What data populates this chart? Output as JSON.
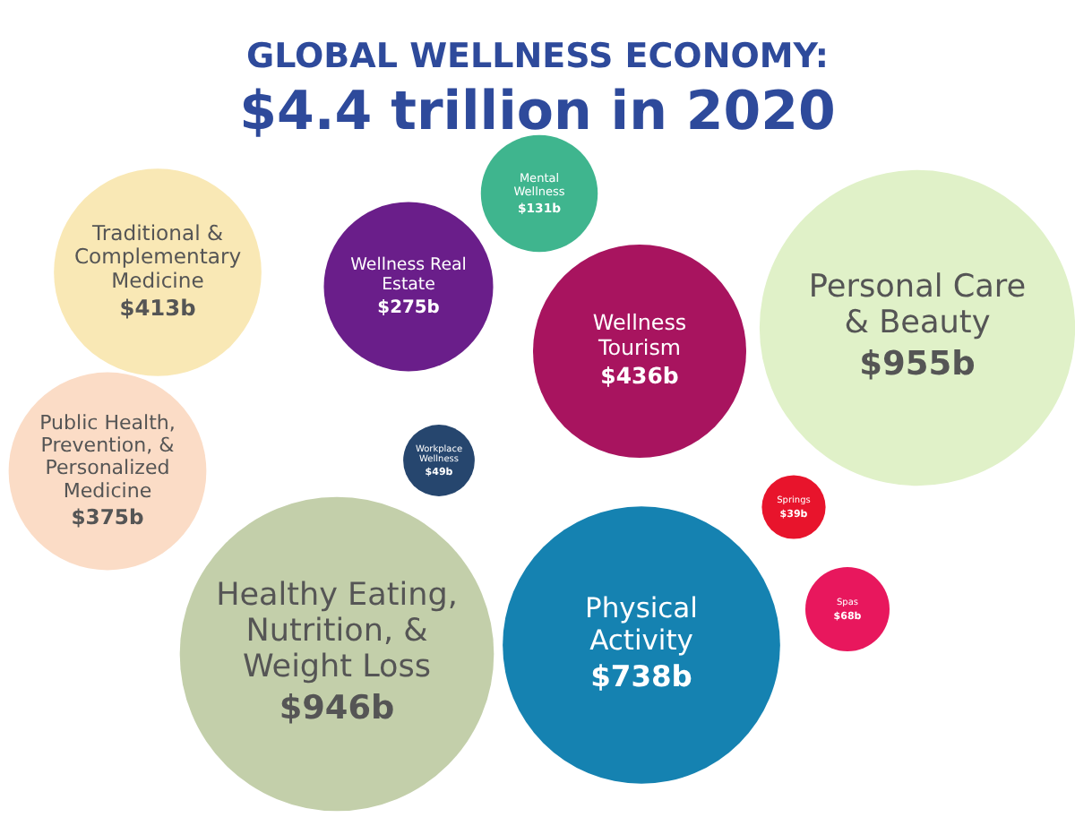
{
  "chart_data": {
    "type": "other",
    "title": "GLOBAL WELLNESS ECONOMY:",
    "subtitle": "$4.4 trillion in 2020",
    "categories": [
      "Mental Wellness",
      "Traditional & Complementary Medicine",
      "Wellness Real Estate",
      "Wellness Tourism",
      "Personal Care & Beauty",
      "Public Health, Prevention, & Personalized Medicine",
      "Workplace Wellness",
      "Springs",
      "Spas",
      "Healthy Eating, Nutrition, & Weight Loss",
      "Physical Activity"
    ],
    "values": [
      131,
      413,
      275,
      436,
      955,
      375,
      49,
      39,
      68,
      946,
      738
    ],
    "value_labels": [
      "$131b",
      "$413b",
      "$275b",
      "$436b",
      "$955b",
      "$375b",
      "$49b",
      "$39b",
      "$68b",
      "$946b",
      "$738b"
    ],
    "colors": [
      "#3fb58e",
      "#f9e8b5",
      "#6a1e8a",
      "#a8145f",
      "#e0f1c8",
      "#fbdcc6",
      "#26466e",
      "#e8142c",
      "#e8175d",
      "#c3cfaa",
      "#1582b1"
    ]
  }
}
